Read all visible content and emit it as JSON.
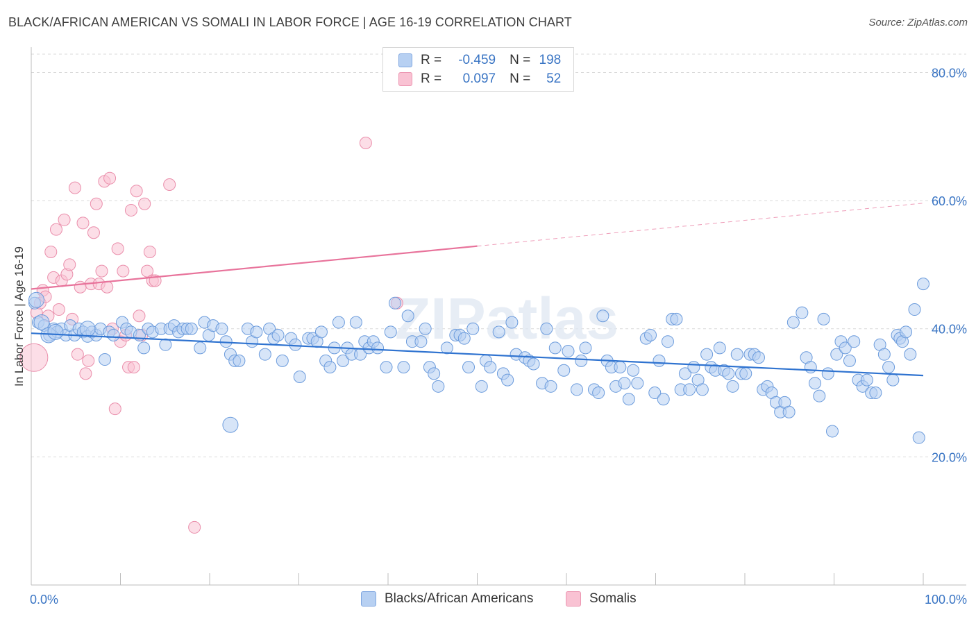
{
  "header": {
    "title": "BLACK/AFRICAN AMERICAN VS SOMALI IN LABOR FORCE | AGE 16-19 CORRELATION CHART",
    "source": "Source: ZipAtlas.com"
  },
  "watermark": "ZIPatlas",
  "legend": {
    "rows": [
      {
        "r_label": "R =",
        "r_value": "-0.459",
        "n_label": "N =",
        "n_value": "198",
        "color": "#7ea6e0"
      },
      {
        "r_label": "R =",
        "r_value": "0.097",
        "n_label": "N =",
        "n_value": "52",
        "color": "#ec95b1"
      }
    ]
  },
  "bottom_legend": [
    {
      "label": "Blacks/African Americans",
      "color": "#7ea6e0"
    },
    {
      "label": "Somalis",
      "color": "#ec95b1"
    }
  ],
  "chart_data": {
    "type": "scatter",
    "title": "BLACK/AFRICAN AMERICAN VS SOMALI IN LABOR FORCE | AGE 16-19 CORRELATION CHART",
    "xlabel": "",
    "ylabel": "In Labor Force | Age 16-19",
    "xlim": [
      0,
      100
    ],
    "ylim": [
      0,
      82
    ],
    "x_tick_labels": [
      "0.0%",
      "100.0%"
    ],
    "y_ticks": [
      20,
      40,
      60,
      80
    ],
    "y_tick_labels": [
      "20.0%",
      "40.0%",
      "60.0%",
      "80.0%"
    ],
    "grid": "horizontal dashed",
    "legend_position": "top-center",
    "colors": {
      "blue_fill": "#b7d0f2",
      "blue_stroke": "#6b9bdc",
      "blue_line": "#2f73d0",
      "pink_fill": "#f9c2d3",
      "pink_stroke": "#ea8eab",
      "pink_line": "#e8739b",
      "axis_label": "#3a75c4"
    },
    "series": [
      {
        "name": "Blacks/African Americans",
        "trend": {
          "x": [
            0,
            100
          ],
          "y": [
            39.3,
            32.7
          ],
          "style": "solid"
        },
        "points": [
          [
            0.4,
            44
          ],
          [
            0.8,
            41
          ],
          [
            1.5,
            40.5
          ],
          [
            2.1,
            39
          ],
          [
            2.6,
            40
          ],
          [
            3,
            39.5
          ],
          [
            3.5,
            40
          ],
          [
            4,
            39
          ],
          [
            4.5,
            40.5
          ],
          [
            5,
            39
          ],
          [
            5.5,
            40
          ],
          [
            6,
            39.5
          ],
          [
            6.5,
            38.8
          ],
          [
            7,
            39.5
          ],
          [
            7.5,
            39
          ],
          [
            8,
            40
          ],
          [
            8.5,
            35.2
          ],
          [
            9,
            39.5
          ],
          [
            9.5,
            39
          ],
          [
            10.5,
            41
          ],
          [
            11,
            40
          ],
          [
            11.5,
            39.5
          ],
          [
            12.5,
            39
          ],
          [
            13,
            37
          ],
          [
            13.5,
            40
          ],
          [
            14,
            39.5
          ],
          [
            15,
            40
          ],
          [
            15.5,
            37.5
          ],
          [
            16,
            40
          ],
          [
            16.5,
            40.5
          ],
          [
            17,
            39.5
          ],
          [
            17.5,
            40
          ],
          [
            18,
            40
          ],
          [
            18.5,
            40
          ],
          [
            19.5,
            37
          ],
          [
            20,
            41
          ],
          [
            20.5,
            39
          ],
          [
            21,
            40.5
          ],
          [
            22,
            40
          ],
          [
            22.5,
            38
          ],
          [
            23,
            36
          ],
          [
            23.5,
            35
          ],
          [
            24,
            35
          ],
          [
            25,
            40
          ],
          [
            25.5,
            38
          ],
          [
            26,
            39.5
          ],
          [
            27,
            36
          ],
          [
            27.5,
            40
          ],
          [
            28,
            38.5
          ],
          [
            28.5,
            39
          ],
          [
            29,
            35
          ],
          [
            30,
            38.5
          ],
          [
            30.5,
            37.5
          ],
          [
            31,
            32.5
          ],
          [
            32,
            38.5
          ],
          [
            32.5,
            38.5
          ],
          [
            33,
            38
          ],
          [
            33.5,
            39.5
          ],
          [
            34,
            35
          ],
          [
            34.5,
            34
          ],
          [
            35,
            37
          ],
          [
            35.5,
            41
          ],
          [
            36,
            35
          ],
          [
            36.5,
            37
          ],
          [
            37,
            36
          ],
          [
            37.5,
            41
          ],
          [
            38,
            36
          ],
          [
            38.5,
            38
          ],
          [
            39,
            37
          ],
          [
            39.5,
            38
          ],
          [
            40,
            37
          ],
          [
            41,
            34
          ],
          [
            41.5,
            39.5
          ],
          [
            42,
            44
          ],
          [
            43,
            34
          ],
          [
            43.5,
            42
          ],
          [
            44,
            38
          ],
          [
            45,
            38
          ],
          [
            45.5,
            40
          ],
          [
            46,
            34
          ],
          [
            46.5,
            33
          ],
          [
            47,
            31
          ],
          [
            48,
            37
          ],
          [
            49,
            39
          ],
          [
            49.5,
            39
          ],
          [
            50,
            38.5
          ],
          [
            50.5,
            34
          ],
          [
            51,
            40
          ],
          [
            52,
            31
          ],
          [
            52.5,
            35
          ],
          [
            53,
            34
          ],
          [
            54,
            39.5
          ],
          [
            54.5,
            33
          ],
          [
            55,
            32
          ],
          [
            55.5,
            41
          ],
          [
            56,
            36
          ],
          [
            57,
            35.5
          ],
          [
            57.5,
            35
          ],
          [
            58,
            34.5
          ],
          [
            59,
            31.5
          ],
          [
            59.5,
            40
          ],
          [
            60,
            31
          ],
          [
            60.5,
            37
          ],
          [
            61.5,
            33.5
          ],
          [
            62,
            36.5
          ],
          [
            63,
            30.5
          ],
          [
            63.5,
            35
          ],
          [
            64,
            37
          ],
          [
            65,
            30.5
          ],
          [
            65.5,
            30
          ],
          [
            66,
            42
          ],
          [
            66.5,
            35
          ],
          [
            67,
            34
          ],
          [
            67.5,
            31
          ],
          [
            68,
            34
          ],
          [
            68.5,
            31.5
          ],
          [
            69,
            29
          ],
          [
            69.5,
            33.5
          ],
          [
            70,
            31.5
          ],
          [
            71,
            38.5
          ],
          [
            71.5,
            39
          ],
          [
            72,
            30
          ],
          [
            72.5,
            35
          ],
          [
            73,
            29
          ],
          [
            73.5,
            38
          ],
          [
            74,
            41.5
          ],
          [
            74.5,
            41.5
          ],
          [
            75,
            30.5
          ],
          [
            75.5,
            33
          ],
          [
            76,
            30.5
          ],
          [
            76.5,
            34
          ],
          [
            77,
            32
          ],
          [
            77.5,
            30.5
          ],
          [
            78,
            36
          ],
          [
            78.5,
            34
          ],
          [
            79,
            33.5
          ],
          [
            79.5,
            37
          ],
          [
            80,
            33.5
          ],
          [
            80.5,
            33
          ],
          [
            81,
            31
          ],
          [
            81.5,
            36
          ],
          [
            82,
            33
          ],
          [
            82.5,
            33
          ],
          [
            83,
            36
          ],
          [
            83.5,
            36
          ],
          [
            84,
            35.5
          ],
          [
            84.5,
            30.5
          ],
          [
            85,
            31
          ],
          [
            85.5,
            30
          ],
          [
            86,
            28.5
          ],
          [
            86.5,
            27
          ],
          [
            87,
            28.5
          ],
          [
            87.5,
            27
          ],
          [
            88,
            41
          ],
          [
            89,
            42.5
          ],
          [
            89.5,
            35.5
          ],
          [
            90,
            34
          ],
          [
            90.5,
            31.5
          ],
          [
            91,
            29.5
          ],
          [
            91.5,
            41.5
          ],
          [
            92,
            33
          ],
          [
            92.5,
            24
          ],
          [
            93,
            36
          ],
          [
            93.5,
            38
          ],
          [
            94,
            37
          ],
          [
            94.5,
            35
          ],
          [
            95,
            38
          ],
          [
            95.5,
            32
          ],
          [
            96,
            31
          ],
          [
            96.5,
            32
          ],
          [
            97,
            30
          ],
          [
            97.5,
            30
          ],
          [
            98,
            37.5
          ],
          [
            98.5,
            36
          ],
          [
            99,
            34
          ],
          [
            99.5,
            32
          ],
          [
            100,
            39
          ],
          [
            100.3,
            38.5
          ],
          [
            100.6,
            38
          ],
          [
            101,
            39.5
          ],
          [
            101.5,
            36
          ],
          [
            102,
            43
          ],
          [
            102.5,
            23
          ],
          [
            103,
            47
          ]
        ],
        "point_sizes_note": "large points near x=0",
        "big_points": [
          [
            0.6,
            44.5
          ],
          [
            1.2,
            41
          ],
          [
            2,
            39
          ],
          [
            2.8,
            39.5
          ],
          [
            6.5,
            40
          ],
          [
            23,
            25
          ]
        ]
      },
      {
        "name": "Somalis",
        "trend": {
          "x": [
            0,
            100
          ],
          "y": [
            46.2,
            59.6
          ],
          "solid_until": 50,
          "style": "solid-then-dashed"
        },
        "points": [
          [
            0.3,
            35.5
          ],
          [
            0.6,
            42.5
          ],
          [
            1,
            44
          ],
          [
            1.3,
            46
          ],
          [
            1.6,
            45
          ],
          [
            1.9,
            42
          ],
          [
            2.2,
            52
          ],
          [
            2.5,
            48
          ],
          [
            2.8,
            55.5
          ],
          [
            3.1,
            43
          ],
          [
            3.4,
            47.5
          ],
          [
            3.7,
            57
          ],
          [
            4,
            48.5
          ],
          [
            4.3,
            50
          ],
          [
            4.6,
            41.5
          ],
          [
            4.9,
            62
          ],
          [
            5.2,
            36
          ],
          [
            5.5,
            46.5
          ],
          [
            5.8,
            56.5
          ],
          [
            6.1,
            33
          ],
          [
            6.4,
            35
          ],
          [
            6.7,
            47
          ],
          [
            7,
            55
          ],
          [
            7.3,
            59.5
          ],
          [
            7.6,
            47
          ],
          [
            7.9,
            49
          ],
          [
            8.2,
            63
          ],
          [
            8.5,
            46.5
          ],
          [
            8.8,
            63.5
          ],
          [
            9.1,
            40
          ],
          [
            9.4,
            27.5
          ],
          [
            9.7,
            52.5
          ],
          [
            10,
            38
          ],
          [
            10.3,
            49
          ],
          [
            10.6,
            39
          ],
          [
            10.9,
            34
          ],
          [
            11.2,
            58.5
          ],
          [
            11.5,
            34
          ],
          [
            11.8,
            61.5
          ],
          [
            12.1,
            42
          ],
          [
            12.4,
            39
          ],
          [
            12.7,
            59.5
          ],
          [
            13,
            49
          ],
          [
            13.3,
            52
          ],
          [
            13.6,
            47.5
          ],
          [
            13.9,
            47.5
          ],
          [
            15.5,
            62.5
          ],
          [
            18.3,
            9
          ],
          [
            37.5,
            69
          ],
          [
            41,
            44
          ]
        ]
      }
    ]
  }
}
